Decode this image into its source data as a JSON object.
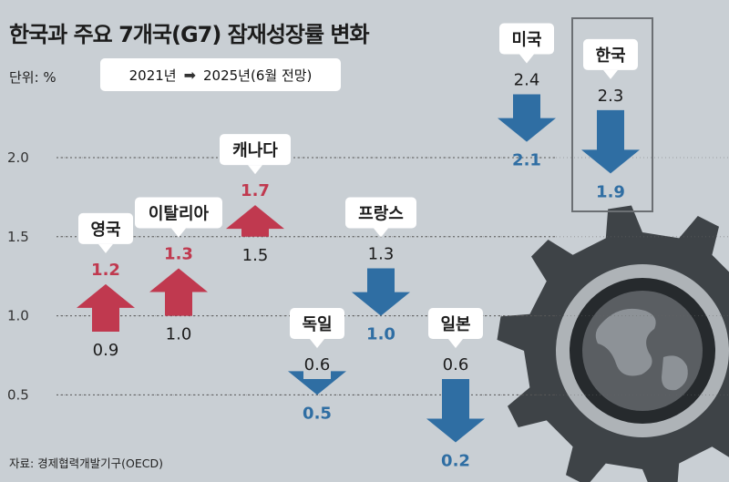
{
  "title": "한국과 주요 7개국(G7) 잠재성장률 변화",
  "unit": "단위: %",
  "period": {
    "from": "2021년",
    "arrow": "➡",
    "to": "2025년(6월 전망)"
  },
  "source": "자료: 경제협력개발기구(OECD)",
  "chart_data": {
    "type": "bar",
    "title": "한국과 주요 7개국(G7) 잠재성장률 변화",
    "unit": "%",
    "series_labels": {
      "from": "2021년",
      "to": "2025년(6월 전망)"
    },
    "y_ticks": [
      "0.5",
      "1.0",
      "1.5",
      "2.0"
    ],
    "ylim": [
      0.2,
      2.4
    ],
    "grid": "dotted horizontal",
    "countries": [
      {
        "name": "영국",
        "y2021": 0.9,
        "y2025": 1.2,
        "label2021": "0.9",
        "label2025": "1.2",
        "direction": "up"
      },
      {
        "name": "이탈리아",
        "y2021": 1.0,
        "y2025": 1.3,
        "label2021": "1.0",
        "label2025": "1.3",
        "direction": "up"
      },
      {
        "name": "캐나다",
        "y2021": 1.5,
        "y2025": 1.7,
        "label2021": "1.5",
        "label2025": "1.7",
        "direction": "up"
      },
      {
        "name": "독일",
        "y2021": 0.6,
        "y2025": 0.5,
        "label2021": "0.6",
        "label2025": "0.5",
        "direction": "down"
      },
      {
        "name": "프랑스",
        "y2021": 1.3,
        "y2025": 1.0,
        "label2021": "1.3",
        "label2025": "1.0",
        "direction": "down"
      },
      {
        "name": "일본",
        "y2021": 0.6,
        "y2025": 0.2,
        "label2021": "0.6",
        "label2025": "0.2",
        "direction": "down"
      },
      {
        "name": "미국",
        "y2021": 2.4,
        "y2025": 2.1,
        "label2021": "2.4",
        "label2025": "2.1",
        "direction": "down"
      },
      {
        "name": "한국",
        "y2021": 2.3,
        "y2025": 1.9,
        "label2021": "2.3",
        "label2025": "1.9",
        "direction": "down",
        "highlight": true
      }
    ],
    "colors": {
      "up": "#c0394f",
      "down": "#2f6ea3",
      "gear": "#3e4347",
      "globe": "#5a5e62",
      "background": "#c9cfd4"
    }
  }
}
